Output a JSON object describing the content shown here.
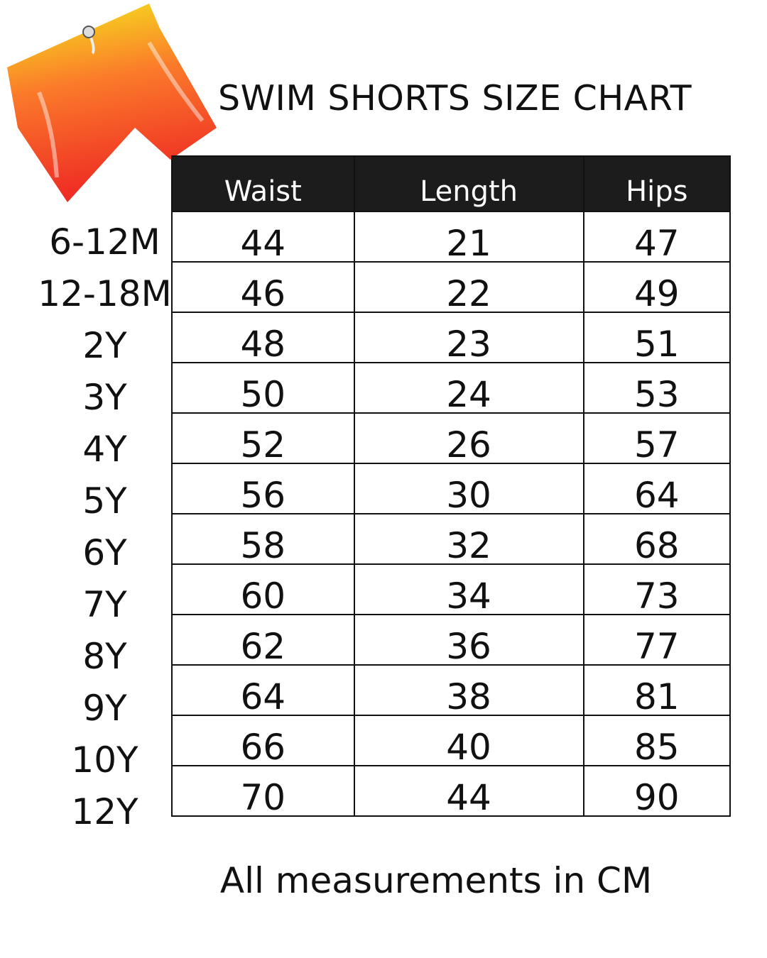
{
  "title": "SWIM SHORTS SIZE CHART",
  "image": {
    "subject": "swim-shorts-icon",
    "colors": {
      "top": "#f5ea1c",
      "middle": "#fb7a2a",
      "bottom": "#ee2a24"
    }
  },
  "table": {
    "headers": [
      "Waist",
      "Length",
      "Hips"
    ],
    "rows": [
      {
        "size": "6-12M",
        "values": [
          "44",
          "21",
          "47"
        ]
      },
      {
        "size": "12-18M",
        "values": [
          "46",
          "22",
          "49"
        ]
      },
      {
        "size": "2Y",
        "values": [
          "48",
          "23",
          "51"
        ]
      },
      {
        "size": "3Y",
        "values": [
          "50",
          "24",
          "53"
        ]
      },
      {
        "size": "4Y",
        "values": [
          "52",
          "26",
          "57"
        ]
      },
      {
        "size": "5Y",
        "values": [
          "56",
          "30",
          "64"
        ]
      },
      {
        "size": "6Y",
        "values": [
          "58",
          "32",
          "68"
        ]
      },
      {
        "size": "7Y",
        "values": [
          "60",
          "34",
          "73"
        ]
      },
      {
        "size": "8Y",
        "values": [
          "62",
          "36",
          "77"
        ]
      },
      {
        "size": "9Y",
        "values": [
          "64",
          "38",
          "81"
        ]
      },
      {
        "size": "10Y",
        "values": [
          "66",
          "40",
          "85"
        ]
      },
      {
        "size": "12Y",
        "values": [
          "70",
          "44",
          "90"
        ]
      }
    ]
  },
  "footer": "All measurements in CM"
}
